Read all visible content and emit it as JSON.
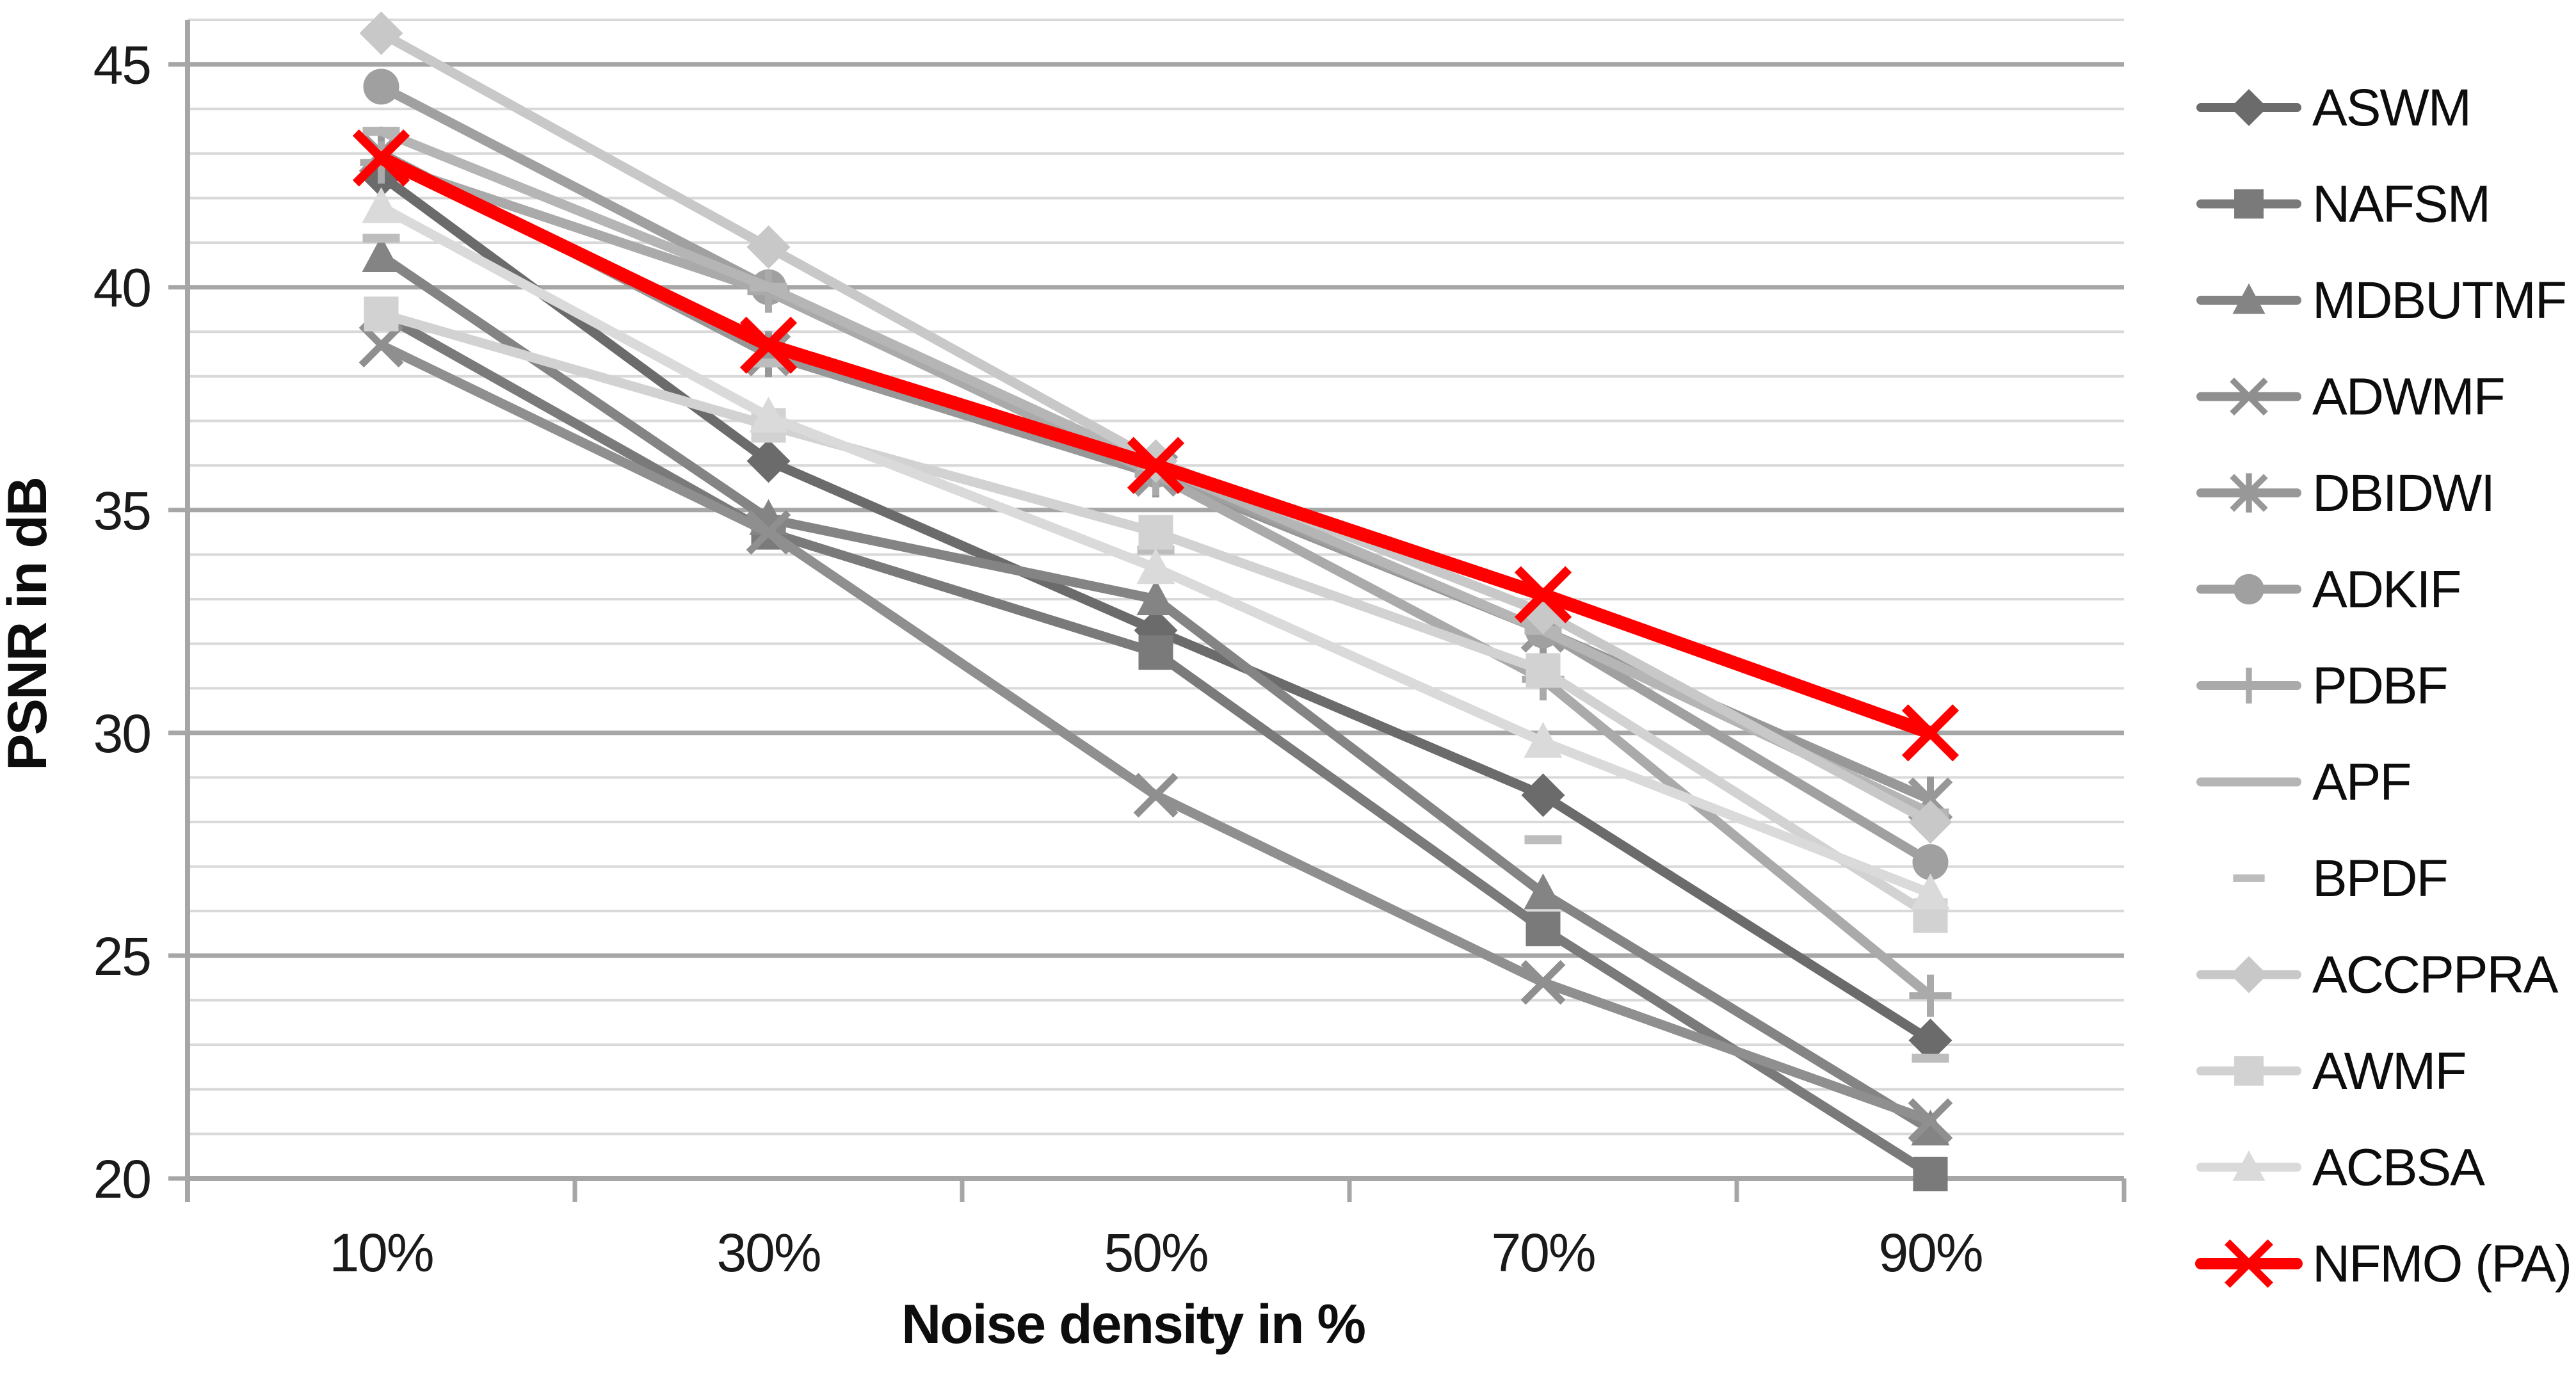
{
  "chart_data": {
    "type": "line",
    "title": "",
    "xlabel": "Noise density in %",
    "ylabel": "PSNR in dB",
    "categories": [
      "10%",
      "30%",
      "50%",
      "70%",
      "90%"
    ],
    "ylim": [
      20,
      46
    ],
    "y_major_ticks": [
      45,
      40,
      35,
      30,
      25,
      20
    ],
    "y_tick_labels": [
      "45",
      "40",
      "35",
      "30",
      "25",
      "20"
    ],
    "y_minor_step": 1,
    "grid": "horizontal-major-and-minor",
    "legend_position": "right",
    "colors": {
      "minor_gridline": "#d9d9d9",
      "major_gridline": "#a6a6a6",
      "axis_line": "#a6a6a6",
      "text": "#0d0d0d",
      "accent": "#ff0000"
    },
    "series": [
      {
        "name": "ASWM",
        "color": "#6b6b6b",
        "marker": "diamond",
        "line": true,
        "values": [
          42.5,
          36.1,
          32.3,
          28.6,
          23.1
        ]
      },
      {
        "name": "NAFSM",
        "color": "#7a7a7a",
        "marker": "square",
        "line": true,
        "values": [
          39.4,
          34.5,
          31.8,
          25.6,
          20.1
        ]
      },
      {
        "name": "MDBUTMF",
        "color": "#848484",
        "marker": "triangle",
        "line": true,
        "values": [
          40.7,
          34.8,
          33.0,
          26.4,
          21.1
        ]
      },
      {
        "name": "ADWMF",
        "color": "#8f8f8f",
        "marker": "x",
        "line": true,
        "values": [
          38.7,
          34.5,
          28.6,
          24.4,
          21.3
        ]
      },
      {
        "name": "DBIDWI",
        "color": "#989898",
        "marker": "star",
        "line": true,
        "values": [
          43.0,
          38.5,
          35.8,
          32.3,
          28.5
        ]
      },
      {
        "name": "ADKIF",
        "color": "#a0a0a0",
        "marker": "circle",
        "line": true,
        "values": [
          44.5,
          40.0,
          35.9,
          32.3,
          27.1
        ]
      },
      {
        "name": "PDBF",
        "color": "#aaaaaa",
        "marker": "plus",
        "line": true,
        "values": [
          42.8,
          39.9,
          35.8,
          31.2,
          24.1
        ]
      },
      {
        "name": "APF",
        "color": "#b5b5b5",
        "marker": "dash",
        "line": true,
        "values": [
          43.5,
          40.0,
          36.0,
          32.3,
          28.2
        ]
      },
      {
        "name": "BPDF",
        "color": "#bdbdbd",
        "marker": "dash",
        "line": false,
        "values": [
          41.1,
          38.3,
          34.1,
          27.6,
          22.7
        ]
      },
      {
        "name": "ACCPPRA",
        "color": "#c8c8c8",
        "marker": "diamond",
        "line": true,
        "values": [
          45.7,
          40.9,
          36.1,
          32.7,
          28.0
        ]
      },
      {
        "name": "AWMF",
        "color": "#d2d2d2",
        "marker": "square",
        "line": true,
        "values": [
          39.4,
          36.9,
          34.5,
          31.4,
          25.9
        ]
      },
      {
        "name": "ACBSA",
        "color": "#dadada",
        "marker": "triangle",
        "line": true,
        "values": [
          41.8,
          37.1,
          33.7,
          29.8,
          26.4
        ]
      },
      {
        "name": "NFMO (PA)",
        "color": "#ff0000",
        "marker": "x",
        "line": true,
        "values": [
          42.9,
          38.7,
          36.0,
          33.1,
          30.0
        ]
      }
    ]
  }
}
